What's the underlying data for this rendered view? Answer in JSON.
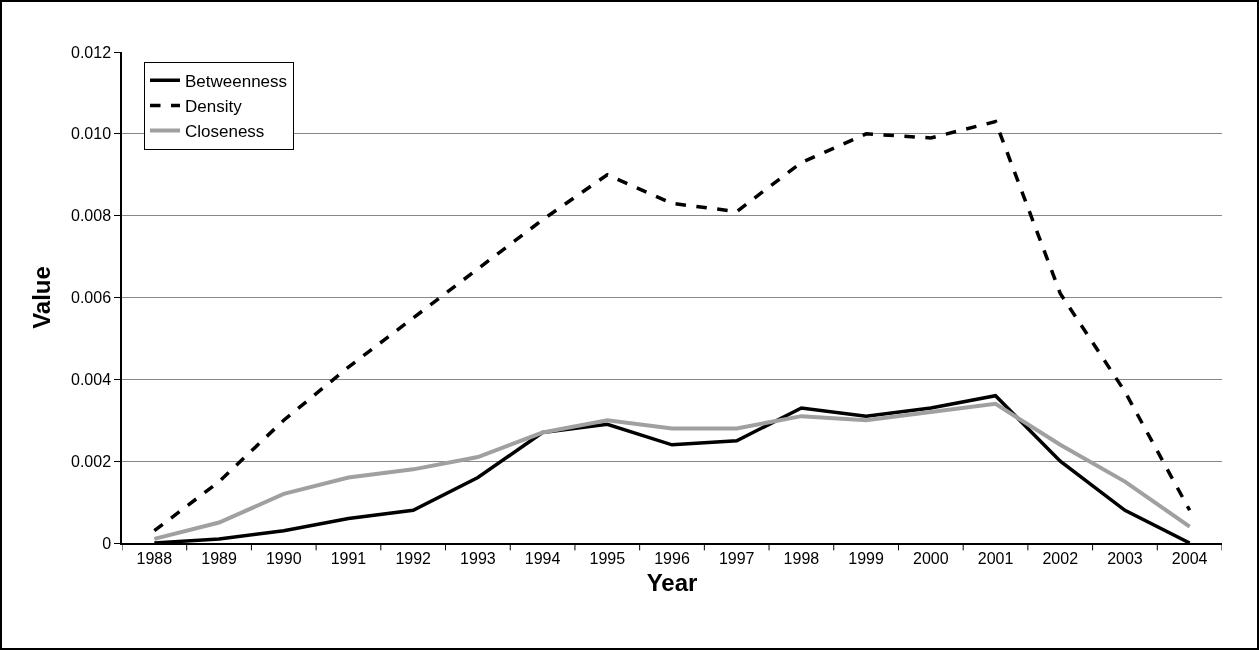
{
  "chart_data": {
    "type": "line",
    "xlabel": "Year",
    "ylabel": "Value",
    "categories": [
      "1988",
      "1989",
      "1990",
      "1991",
      "1992",
      "1993",
      "1994",
      "1995",
      "1996",
      "1997",
      "1998",
      "1999",
      "2000",
      "2001",
      "2002",
      "2003",
      "2004"
    ],
    "series": [
      {
        "name": "Betweenness",
        "color": "#000000",
        "line_style": "solid",
        "values": [
          0,
          0.0001,
          0.0003,
          0.0006,
          0.0008,
          0.0016,
          0.0027,
          0.0029,
          0.0024,
          0.0025,
          0.0033,
          0.0031,
          0.0033,
          0.0036,
          0.002,
          0.0008,
          0
        ]
      },
      {
        "name": "Density",
        "color": "#000000",
        "line_style": "dashed",
        "values": [
          0.0003,
          0.0015,
          0.003,
          0.0043,
          0.0055,
          0.0067,
          0.0079,
          0.009,
          0.0083,
          0.0081,
          0.0093,
          0.01,
          0.0099,
          0.0103,
          0.0061,
          0.0037,
          0.0008
        ]
      },
      {
        "name": "Closeness",
        "color": "#a0a0a0",
        "line_style": "solid",
        "values": [
          0.0001,
          0.0005,
          0.0012,
          0.0016,
          0.0018,
          0.0021,
          0.0027,
          0.003,
          0.0028,
          0.0028,
          0.0031,
          0.003,
          0.0032,
          0.0034,
          0.0024,
          0.0015,
          0.0004
        ]
      }
    ],
    "ylim": [
      0,
      0.012
    ],
    "yticks": [
      0,
      0.002,
      0.004,
      0.006,
      0.008,
      {
        "value": 0.01,
        "label": "0.010"
      },
      {
        "value": 0.012,
        "label": "0.012"
      }
    ],
    "grid": "y",
    "legend": "top left",
    "marker": "none"
  }
}
